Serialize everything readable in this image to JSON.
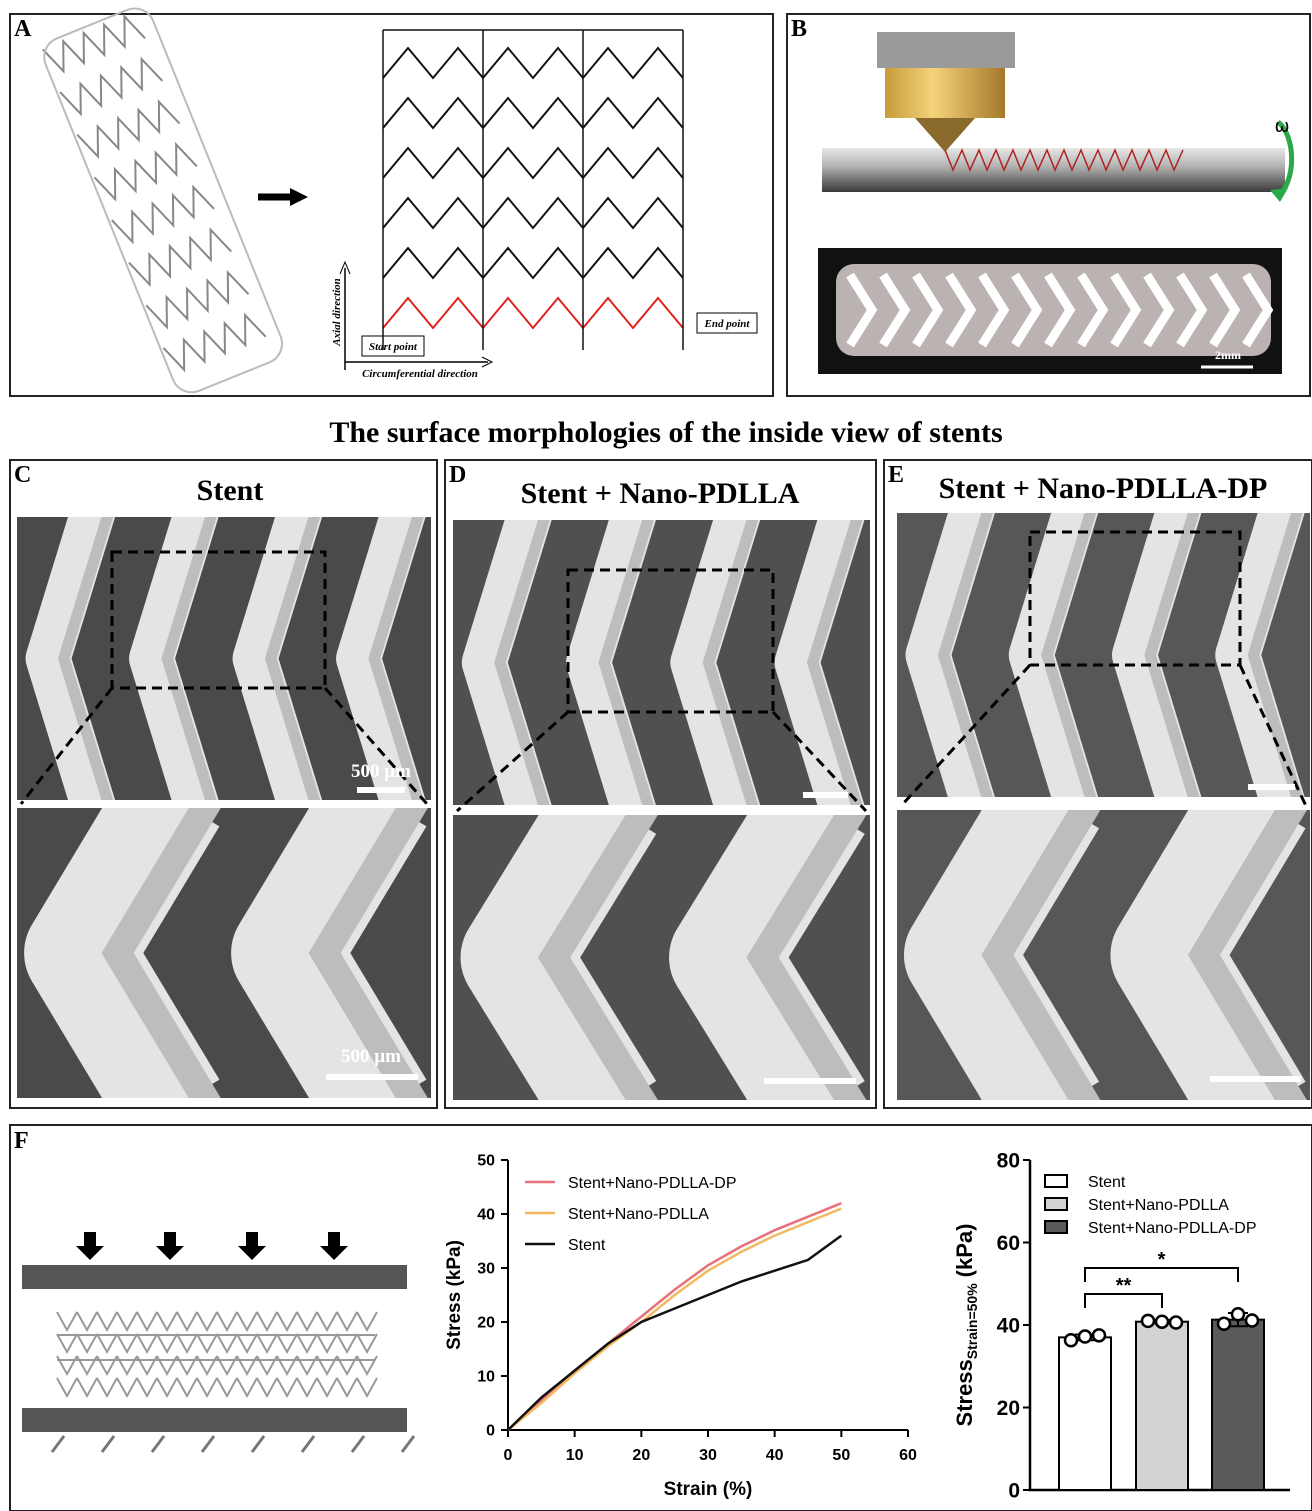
{
  "figure": {
    "title": "The surface morphologies of the inside view of stents",
    "panel_a": {
      "label": "A",
      "axial": "Axial direction",
      "circumferential": "Circumferential direction",
      "start": "Start point",
      "end": "End point"
    },
    "panel_b": {
      "label": "B",
      "omega": "ω",
      "scale": "2mm"
    },
    "panel_c": {
      "label": "C",
      "title": "Stent",
      "scale_top": "500 µm",
      "scale_bottom": "500 µm"
    },
    "panel_d": {
      "label": "D",
      "title": "Stent + Nano-PDLLA"
    },
    "panel_e": {
      "label": "E",
      "title": "Stent + Nano-PDLLA-DP"
    },
    "panel_f": {
      "label": "F"
    }
  },
  "chart_data": [
    {
      "type": "line",
      "xlabel": "Strain (%)",
      "ylabel": "Stress (kPa)",
      "x": [
        0,
        5,
        10,
        15,
        20,
        25,
        30,
        35,
        40,
        45,
        50
      ],
      "series": [
        {
          "name": "Stent+Nano-PDLLA-DP",
          "color": "#e8707a",
          "values": [
            0,
            5.5,
            11,
            16,
            21,
            26,
            30.5,
            34,
            37,
            39.5,
            42
          ]
        },
        {
          "name": "Stent+Nano-PDLLA",
          "color": "#f5b860",
          "values": [
            0,
            5,
            10.5,
            15.5,
            20,
            25,
            29.5,
            33,
            36,
            38.5,
            41
          ]
        },
        {
          "name": "Stent",
          "color": "#111111",
          "values": [
            0,
            6,
            11,
            16,
            20,
            22.5,
            25,
            27.5,
            29.5,
            31.5,
            36
          ]
        }
      ],
      "xlim": [
        0,
        60
      ],
      "xticks": [
        0,
        10,
        20,
        30,
        40,
        50,
        60
      ],
      "ylim": [
        0,
        50
      ],
      "yticks": [
        0,
        10,
        20,
        30,
        40,
        50
      ],
      "legend": "upper left"
    },
    {
      "type": "bar",
      "ylabel": "Stress",
      "ylabel_sub": "Strain=50%",
      "ylabel_unit": "(kPa)",
      "categories": [
        "Stent",
        "Stent+Nano-PDLLA",
        "Stent+Nano-PDLLA-DP"
      ],
      "colors": [
        "#ffffff",
        "#d3d3d3",
        "#5a5a5a"
      ],
      "values": [
        37,
        40.8,
        41.3
      ],
      "errors": [
        0.7,
        0.4,
        1.6
      ],
      "points": [
        [
          36.3,
          37.2,
          37.5
        ],
        [
          41,
          40.8,
          40.6
        ],
        [
          40.3,
          42.6,
          41.1
        ]
      ],
      "ylim": [
        0,
        80
      ],
      "yticks": [
        0,
        20,
        40,
        60,
        80
      ],
      "annotations": [
        "**",
        "*"
      ]
    }
  ]
}
